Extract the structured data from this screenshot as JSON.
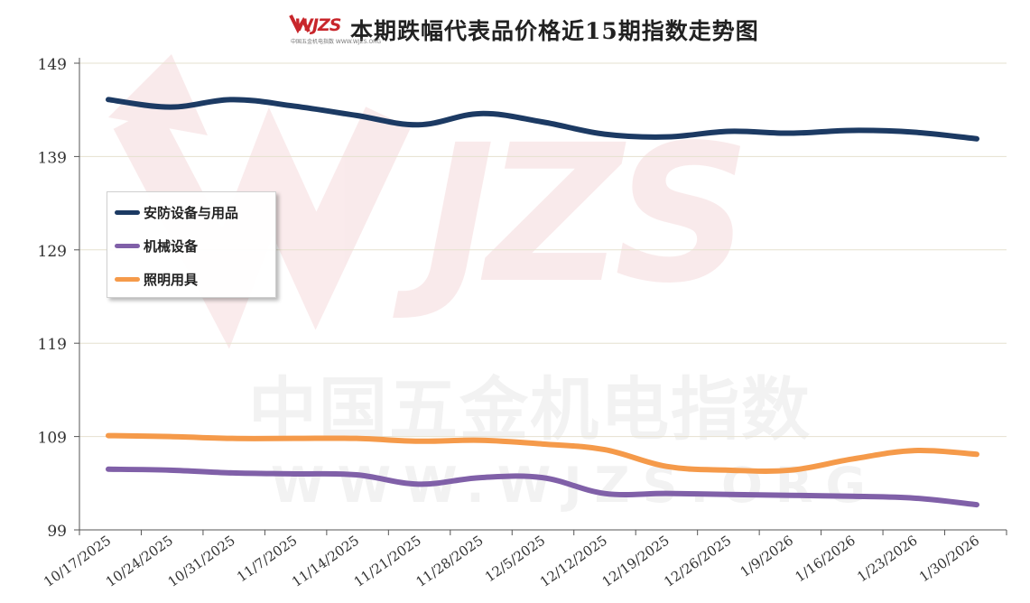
{
  "logo": {
    "text": "WJZS",
    "subtext": "中国五金机电指数 WWW.WJZS.ORG"
  },
  "watermark": {
    "line1": "中国五金机电指数",
    "line2": "WWW.WJZS.ORG"
  },
  "chart_data": {
    "type": "line",
    "title": "本期跌幅代表品价格近15期指数走势图",
    "xlabel": "",
    "ylabel": "",
    "x": [
      "10/17/2025",
      "10/24/2025",
      "10/31/2025",
      "11/7/2025",
      "11/14/2025",
      "11/21/2025",
      "11/28/2025",
      "12/5/2025",
      "12/12/2025",
      "12/19/2025",
      "12/26/2025",
      "1/9/2026",
      "1/16/2026",
      "1/23/2026",
      "1/30/2026"
    ],
    "ylim": [
      99,
      149
    ],
    "yticks": [
      99,
      109,
      119,
      129,
      139,
      149
    ],
    "grid": true,
    "legend_position": "left-middle",
    "series": [
      {
        "name": "安防设备与用品",
        "color": "#1c3a63",
        "values": [
          145.1,
          144.3,
          145.1,
          144.4,
          143.4,
          142.4,
          143.6,
          142.7,
          141.4,
          141.1,
          141.7,
          141.5,
          141.8,
          141.6,
          140.9
        ]
      },
      {
        "name": "机械设备",
        "color": "#8060a8",
        "values": [
          105.5,
          105.4,
          105.1,
          105.0,
          104.9,
          103.9,
          104.6,
          104.6,
          102.9,
          102.9,
          102.8,
          102.7,
          102.6,
          102.4,
          101.7
        ]
      },
      {
        "name": "照明用具",
        "color": "#f59a4a",
        "values": [
          109.1,
          109.0,
          108.8,
          108.8,
          108.8,
          108.5,
          108.6,
          108.2,
          107.6,
          105.8,
          105.4,
          105.4,
          106.6,
          107.5,
          107.1
        ]
      }
    ]
  }
}
